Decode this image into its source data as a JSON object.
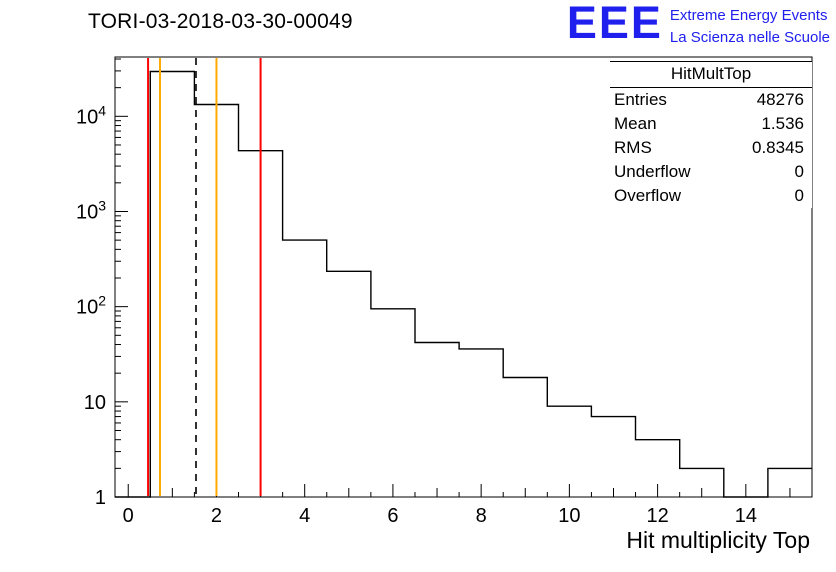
{
  "page": {
    "background": "#ffffff"
  },
  "header": {
    "title": "TORI-03-2018-03-30-00049"
  },
  "logo": {
    "acronym": "EEE",
    "line1": "Extreme Energy Events",
    "line2": "La Scienza nelle Scuole",
    "color": "#2020ee"
  },
  "stats_box": {
    "title": "HitMultTop",
    "rows": [
      {
        "label": "Entries",
        "value": "48276"
      },
      {
        "label": "Mean",
        "value": "1.536"
      },
      {
        "label": "RMS",
        "value": "0.8345"
      },
      {
        "label": "Underflow",
        "value": "0"
      },
      {
        "label": "Overflow",
        "value": "0"
      }
    ]
  },
  "chart_data": {
    "type": "bar",
    "subtype": "step-histogram",
    "title": "TORI-03-2018-03-30-00049",
    "xlabel": "Hit multiplicity Top",
    "ylabel": "",
    "y_scale": "log",
    "x_range": [
      -0.3,
      15.5
    ],
    "y_range": [
      1,
      42000
    ],
    "grid": false,
    "legend": "none",
    "bin_start": 0.5,
    "bin_width": 1,
    "bin_centers": [
      1,
      2,
      3,
      4,
      5,
      6,
      7,
      8,
      9,
      10,
      11,
      12,
      13,
      14,
      15
    ],
    "counts": [
      29600,
      13300,
      4350,
      500,
      235,
      95,
      42,
      36,
      18,
      9,
      7,
      4,
      2,
      0,
      2
    ],
    "x_ticks_labeled": [
      0,
      2,
      4,
      6,
      8,
      10,
      12,
      14
    ],
    "x_tick_minor_step": 0.5,
    "y_ticks": [
      {
        "value": 1,
        "base": "1",
        "exp": ""
      },
      {
        "value": 10,
        "base": "10",
        "exp": ""
      },
      {
        "value": 100,
        "base": "10",
        "exp": "2"
      },
      {
        "value": 1000,
        "base": "10",
        "exp": "3"
      },
      {
        "value": 10000,
        "base": "10",
        "exp": "4"
      }
    ],
    "marker_lines": [
      {
        "x": 0.45,
        "color": "#ff0000",
        "style": "solid",
        "name": "marker-line-red-low"
      },
      {
        "x": 0.72,
        "color": "#ffaa00",
        "style": "solid",
        "name": "marker-line-orange-low"
      },
      {
        "x": 1.536,
        "color": "#000000",
        "style": "dashed",
        "name": "marker-line-mean-dashed"
      },
      {
        "x": 2.0,
        "color": "#ffaa00",
        "style": "solid",
        "name": "marker-line-orange-high"
      },
      {
        "x": 3.0,
        "color": "#ff0000",
        "style": "solid",
        "name": "marker-line-red-high"
      }
    ],
    "line_color": "#000000"
  }
}
